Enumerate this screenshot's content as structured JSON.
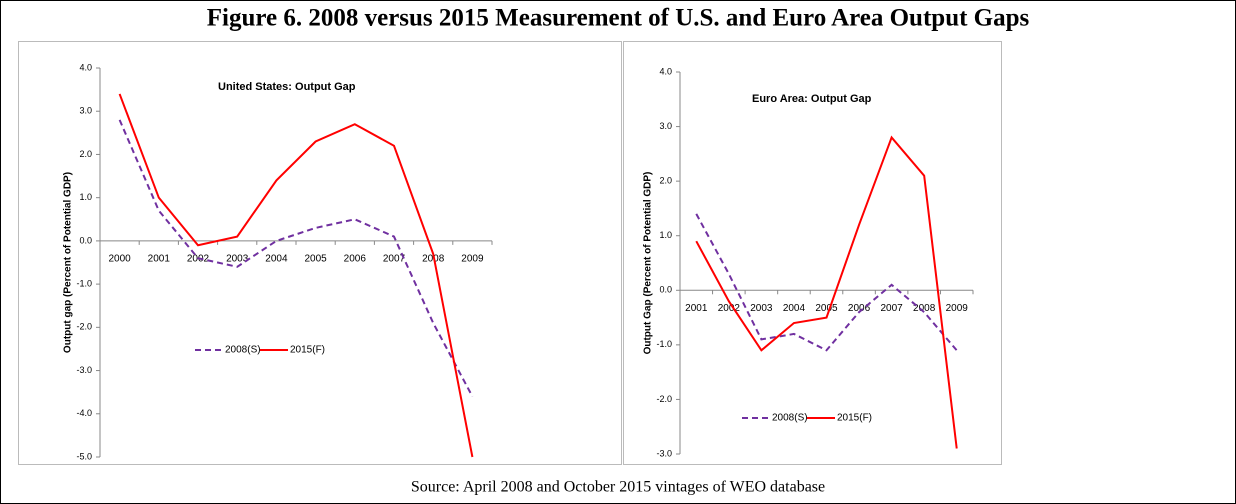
{
  "title": "Figure 6. 2008 versus 2015 Measurement of U.S. and Euro Area Output Gaps",
  "source": "Source: April 2008 and October 2015 vintages of WEO database",
  "chart_data": [
    {
      "type": "line",
      "title": "United States: Output Gap",
      "y_label": "Output gap (Percent of Potential GDP)",
      "categories": [
        "2000",
        "2001",
        "2002",
        "2003",
        "2004",
        "2005",
        "2006",
        "2007",
        "2008",
        "2009"
      ],
      "series": [
        {
          "name": "2008(S)",
          "color": "#7030a0",
          "dashed": true,
          "values": [
            2.8,
            0.7,
            -0.4,
            -0.6,
            0.0,
            0.3,
            0.5,
            0.1,
            -1.9,
            -3.6
          ]
        },
        {
          "name": "2015(F)",
          "color": "#ff0000",
          "dashed": false,
          "values": [
            3.4,
            1.0,
            -0.1,
            0.1,
            1.4,
            2.3,
            2.7,
            2.2,
            -0.3,
            -5.0
          ]
        }
      ],
      "ylim": [
        -5,
        4
      ],
      "yticks": [
        {
          "value": 4,
          "label": "4.0"
        },
        {
          "value": 3,
          "label": "3.0"
        },
        {
          "value": 2,
          "label": "2.0"
        },
        {
          "value": 1,
          "label": "1.0"
        },
        {
          "value": 0,
          "label": "0.0"
        },
        {
          "value": -1,
          "label": "-1.0"
        },
        {
          "value": -2,
          "label": "-2.0"
        },
        {
          "value": -3,
          "label": "-3.0"
        },
        {
          "value": -4,
          "label": "-4.0"
        },
        {
          "value": -5,
          "label": "-5.0"
        }
      ]
    },
    {
      "type": "line",
      "title": "Euro Area: Output Gap",
      "y_label": "Output Gap (Percent of Potential GDP)",
      "categories": [
        "2001",
        "2002",
        "2003",
        "2004",
        "2005",
        "2006",
        "2007",
        "2008",
        "2009"
      ],
      "series": [
        {
          "name": "2008(S)",
          "color": "#7030a0",
          "dashed": true,
          "values": [
            1.4,
            0.3,
            -0.9,
            -0.8,
            -1.1,
            -0.4,
            0.1,
            -0.4,
            -1.1
          ]
        },
        {
          "name": "2015(F)",
          "color": "#ff0000",
          "dashed": false,
          "values": [
            0.9,
            -0.2,
            -1.1,
            -0.6,
            -0.5,
            1.2,
            2.8,
            2.1,
            -2.9
          ]
        }
      ],
      "ylim": [
        -3,
        4
      ],
      "yticks": [
        {
          "value": 4,
          "label": "4.0"
        },
        {
          "value": 3,
          "label": "3.0"
        },
        {
          "value": 2,
          "label": "2.0"
        },
        {
          "value": 1,
          "label": "1.0"
        },
        {
          "value": 0,
          "label": "0.0"
        },
        {
          "value": -1,
          "label": "-1.0"
        },
        {
          "value": -2,
          "label": "-2.0"
        },
        {
          "value": -3,
          "label": "-3.0"
        }
      ]
    }
  ]
}
